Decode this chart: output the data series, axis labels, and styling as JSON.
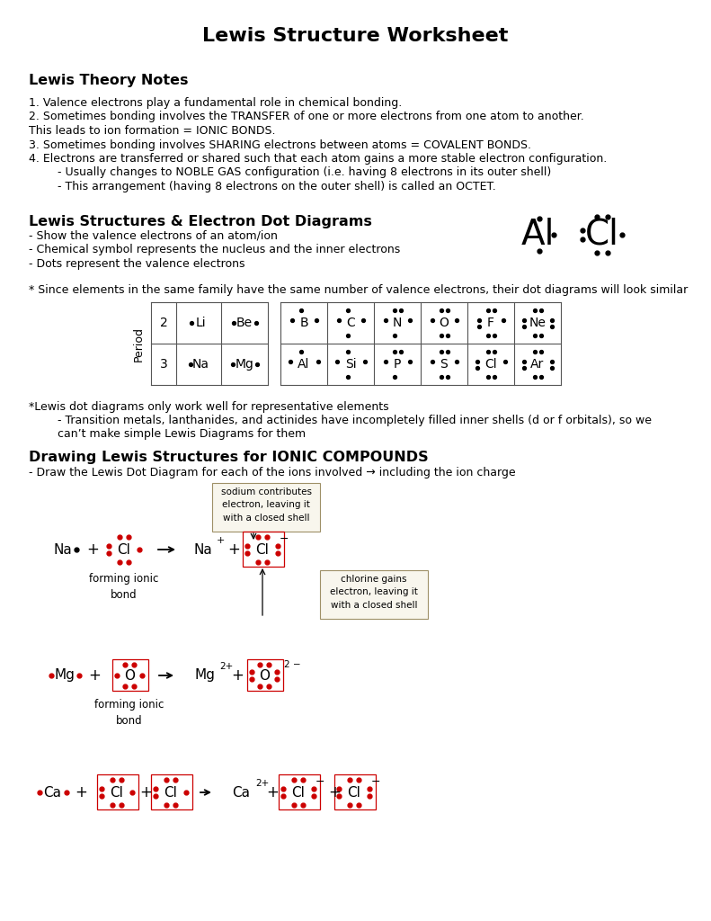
{
  "title": "Lewis Structure Worksheet",
  "bg_color": "#ffffff",
  "text_color": "#000000",
  "red_color": "#cc0000",
  "section1_title": "Lewis Theory Notes",
  "notes": [
    "1. Valence electrons play a fundamental role in chemical bonding.",
    "2. Sometimes bonding involves the TRANSFER of one or more electrons from one atom to another.",
    "This leads to ion formation = IONIC BONDS.",
    "3. Sometimes bonding involves SHARING electrons between atoms = COVALENT BONDS.",
    "4. Electrons are transferred or shared such that each atom gains a more stable electron configuration.",
    "        - Usually changes to NOBLE GAS configuration (i.e. having 8 electrons in its outer shell)",
    "        - This arrangement (having 8 electrons on the outer shell) is called an OCTET."
  ],
  "section2_title": "Lewis Structures & Electron Dot Diagrams",
  "dot_diagram_notes": [
    "- Show the valence electrons of an atom/ion",
    "- Chemical symbol represents the nucleus and the inner electrons",
    "- Dots represent the valence electrons"
  ],
  "since_note": "* Since elements in the same family have the same number of valence electrons, their dot diagrams will look similar",
  "lewis_note1": "*Lewis dot diagrams only work well for representative elements",
  "lewis_note2": "        - Transition metals, lanthanides, and actinides have incompletely filled inner shells (d or f orbitals), so we",
  "lewis_note3": "        can’t make simple Lewis Diagrams for them",
  "section3_title": "Drawing Lewis Structures for IONIC COMPOUNDS",
  "ionic_note": "- Draw the Lewis Dot Diagram for each of the ions involved → including the ion charge",
  "box1_text": "sodium contributes\nelectron, leaving it\nwith a closed shell",
  "box2_text": "chlorine gains\nelectron, leaving it\nwith a closed shell"
}
